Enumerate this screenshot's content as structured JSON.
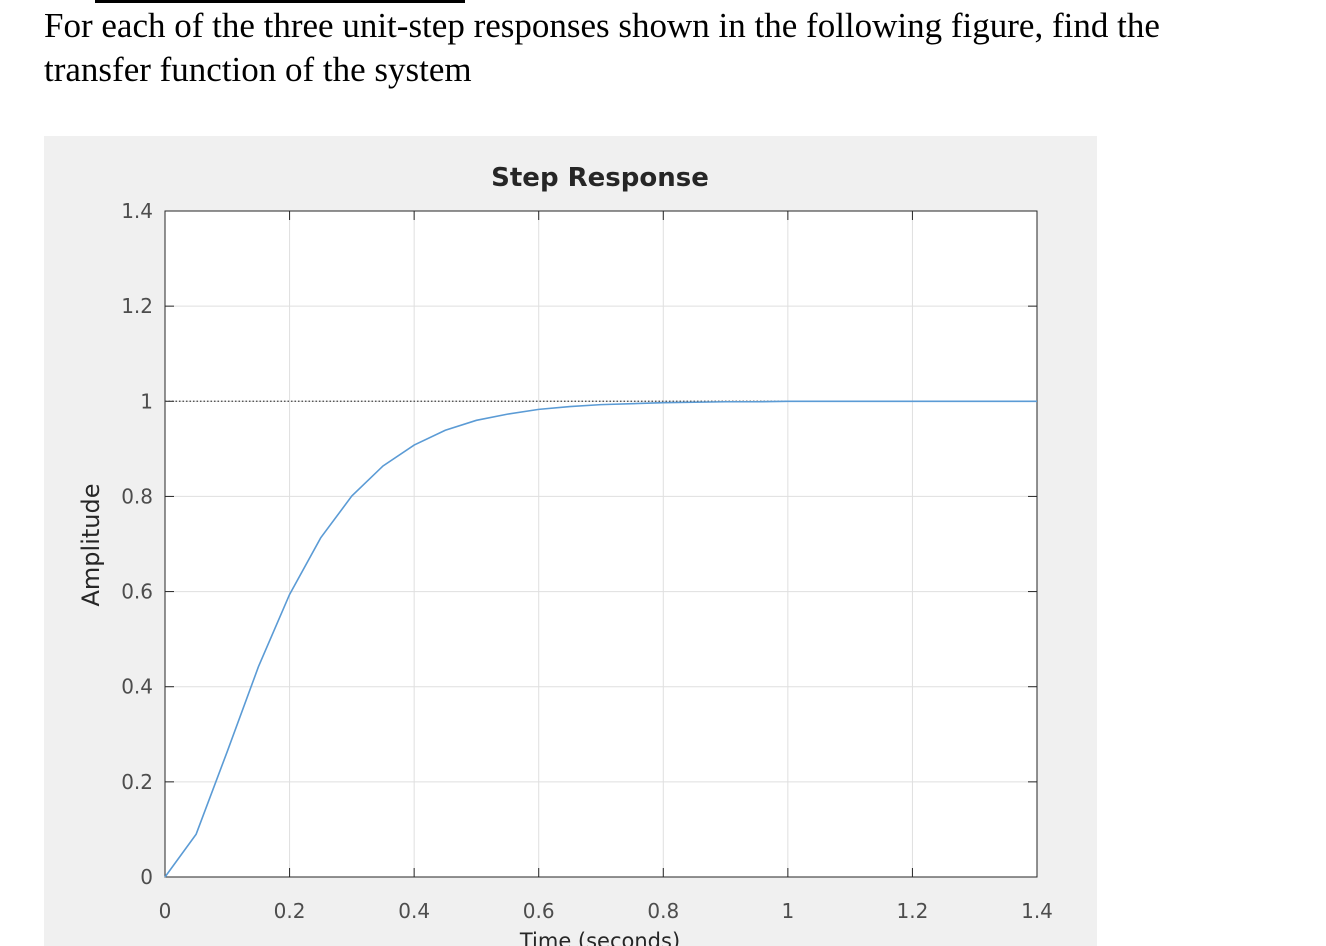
{
  "question": {
    "lines": [
      "For each of the three unit-step responses shown in the following figure, find the",
      "transfer function of the system"
    ]
  },
  "chart_data": {
    "type": "line",
    "title": "Step Response",
    "x_label": "Time (seconds)",
    "y_label": "Amplitude",
    "x": [
      0,
      0.05,
      0.1,
      0.15,
      0.2,
      0.25,
      0.3,
      0.35,
      0.4,
      0.45,
      0.5,
      0.55,
      0.6,
      0.65,
      0.7,
      0.75,
      0.8,
      0.85,
      0.9,
      0.95,
      1,
      1.05,
      1.1,
      1.15,
      1.2,
      1.25,
      1.3,
      1.35,
      1.4
    ],
    "values": [
      0,
      0.09,
      0.264,
      0.442,
      0.594,
      0.713,
      0.801,
      0.864,
      0.908,
      0.939,
      0.96,
      0.973,
      0.983,
      0.989,
      0.993,
      0.995,
      0.997,
      0.998,
      0.999,
      0.999,
      1,
      1,
      1,
      1,
      1,
      1,
      1,
      1,
      1
    ],
    "color": "#5b9bd5",
    "steady_state": 1,
    "xlim": [
      0,
      1.4
    ],
    "ylim": [
      0,
      1.4
    ],
    "xticks": [
      0,
      0.2,
      0.4,
      0.6,
      0.8,
      1,
      1.2,
      1.4
    ],
    "yticks": [
      0,
      0.2,
      0.4,
      0.6,
      0.8,
      1,
      1.2,
      1.4
    ],
    "grid": true
  }
}
